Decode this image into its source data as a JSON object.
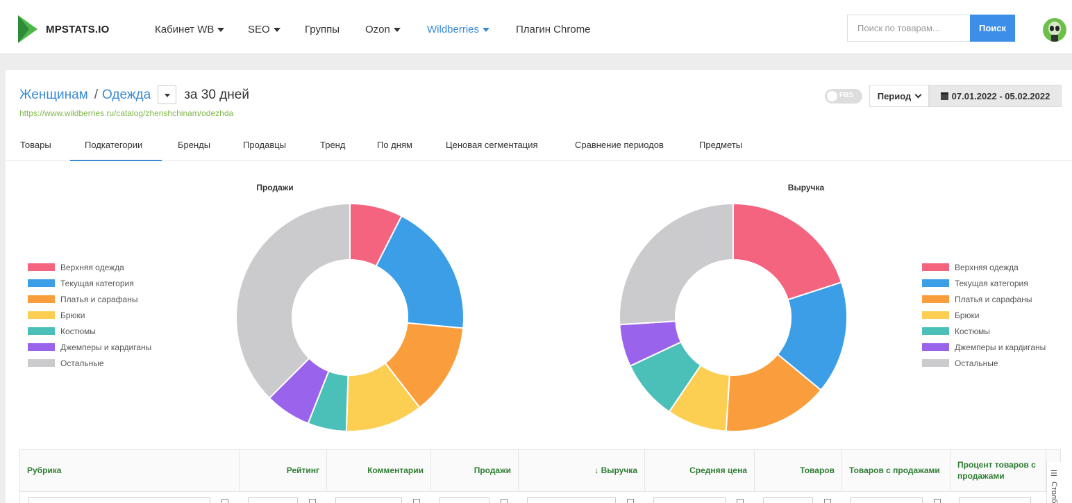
{
  "brand": {
    "name": "MPSTATS.IO"
  },
  "nav": {
    "items": [
      {
        "label": "Кабинет WB",
        "dropdown": true,
        "active": false
      },
      {
        "label": "SEO",
        "dropdown": true,
        "active": false
      },
      {
        "label": "Группы",
        "dropdown": false,
        "active": false
      },
      {
        "label": "Ozon",
        "dropdown": true,
        "active": false
      },
      {
        "label": "Wildberries",
        "dropdown": true,
        "active": true
      },
      {
        "label": "Плагин Chrome",
        "dropdown": false,
        "active": false
      }
    ],
    "search_placeholder": "Поиск по товарам...",
    "search_button": "Поиск"
  },
  "breadcrumb": {
    "parent": "Женщинам",
    "separator": "/",
    "current": "Одежда",
    "period": "за 30 дней"
  },
  "category_url": "https://www.wildberries.ru/catalog/zhenshchinam/odezhda",
  "controls": {
    "fbs_label": "FBS",
    "period_label": "Период",
    "date_range": "07.01.2022 - 05.02.2022"
  },
  "tabs": [
    {
      "label": "Товары",
      "active": false
    },
    {
      "label": "Подкатегории",
      "active": true
    },
    {
      "label": "Бренды",
      "active": false
    },
    {
      "label": "Продавцы",
      "active": false
    },
    {
      "label": "Тренд",
      "active": false
    },
    {
      "label": "По дням",
      "active": false
    },
    {
      "label": "Ценовая сегментация",
      "active": false
    },
    {
      "label": "Сравнение периодов",
      "active": false
    },
    {
      "label": "Предметы",
      "active": false
    }
  ],
  "colors": {
    "accent": "#3a8ad6",
    "search_button": "#3d8ee8",
    "url_green": "#7fb84a",
    "table_header_green": "#2e7d32"
  },
  "chart_data": [
    {
      "type": "pie",
      "title": "Продажи",
      "donut": true,
      "legend_position": "left",
      "categories": [
        "Верхняя одежда",
        "Текущая категория",
        "Платья и сарафаны",
        "Брюки",
        "Костюмы",
        "Джемперы и кардиганы",
        "Остальные"
      ],
      "values": [
        7.5,
        19,
        13,
        11,
        5.5,
        6.5,
        37.5
      ],
      "colors": [
        "#f4647f",
        "#3d9ee8",
        "#fa9e3d",
        "#fccf52",
        "#4ac0b8",
        "#9a63ec",
        "#cbcbcd"
      ]
    },
    {
      "type": "pie",
      "title": "Выручка",
      "donut": true,
      "legend_position": "right",
      "categories": [
        "Верхняя одежда",
        "Текущая категория",
        "Платья и сарафаны",
        "Брюки",
        "Костюмы",
        "Джемперы и кардиганы",
        "Остальные"
      ],
      "values": [
        20,
        16,
        15,
        8.5,
        8.5,
        6,
        26
      ],
      "colors": [
        "#f4647f",
        "#3d9ee8",
        "#fa9e3d",
        "#fccf52",
        "#4ac0b8",
        "#9a63ec",
        "#cbcbcd"
      ]
    }
  ],
  "table": {
    "columns": [
      "Рубрика",
      "Рейтинг",
      "Комментарии",
      "Продажи",
      "↓ Выручка",
      "Средняя цена",
      "Товаров",
      "Товаров с продажами",
      "Процент товаров с продажами"
    ],
    "side_tool_label": "Столбцы",
    "side_tool_icon": "columns-icon"
  }
}
